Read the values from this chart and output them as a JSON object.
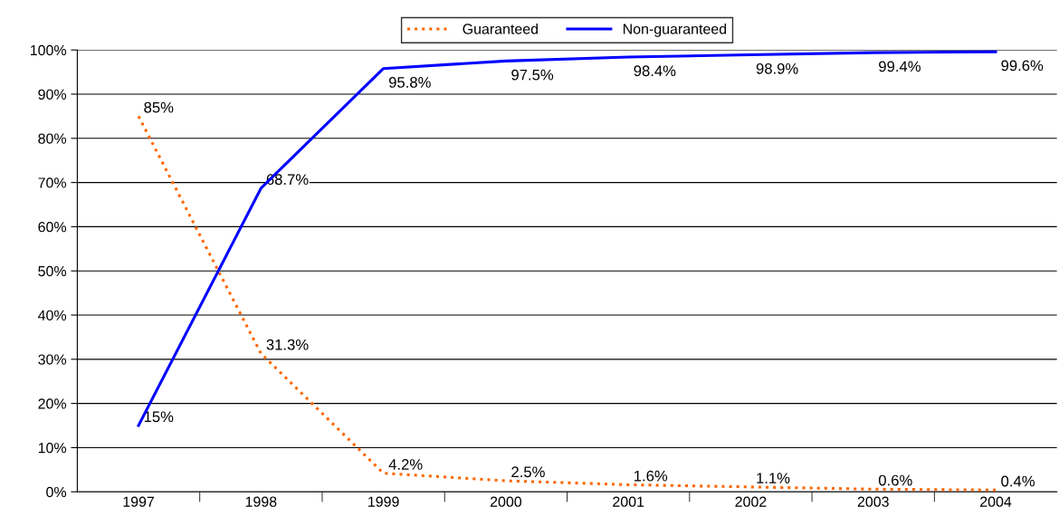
{
  "chart_data": {
    "type": "line",
    "categories": [
      "1997",
      "1998",
      "1999",
      "2000",
      "2001",
      "2002",
      "2003",
      "2004"
    ],
    "series": [
      {
        "name": "Guaranteed",
        "color": "#ff6600",
        "line_style": "dotted",
        "values": [
          85,
          31.3,
          4.2,
          2.5,
          1.6,
          1.1,
          0.6,
          0.4
        ],
        "value_labels": [
          "85%",
          "31.3%",
          "4.2%",
          "2.5%",
          "1.6%",
          "1.1%",
          "0.6%",
          "0.4%"
        ]
      },
      {
        "name": "Non-guaranteed",
        "color": "#0000ff",
        "line_style": "solid",
        "values": [
          15,
          68.7,
          95.8,
          97.5,
          98.4,
          98.9,
          99.4,
          99.6
        ],
        "value_labels": [
          "15%",
          "68.7%",
          "95.8%",
          "97.5%",
          "98.4%",
          "98.9%",
          "99.4%",
          "99.6%"
        ]
      }
    ],
    "ylim": [
      0,
      100
    ],
    "yticks": [
      {
        "value": 0,
        "label": "0%"
      },
      {
        "value": 10,
        "label": "10%"
      },
      {
        "value": 20,
        "label": "20%"
      },
      {
        "value": 30,
        "label": "30%"
      },
      {
        "value": 40,
        "label": "40%"
      },
      {
        "value": 50,
        "label": "50%"
      },
      {
        "value": 60,
        "label": "60%"
      },
      {
        "value": 70,
        "label": "70%"
      },
      {
        "value": 80,
        "label": "80%"
      },
      {
        "value": 90,
        "label": "90%"
      },
      {
        "value": 100,
        "label": "100%"
      }
    ],
    "grid": "y",
    "legend": "top",
    "marker": "none"
  }
}
